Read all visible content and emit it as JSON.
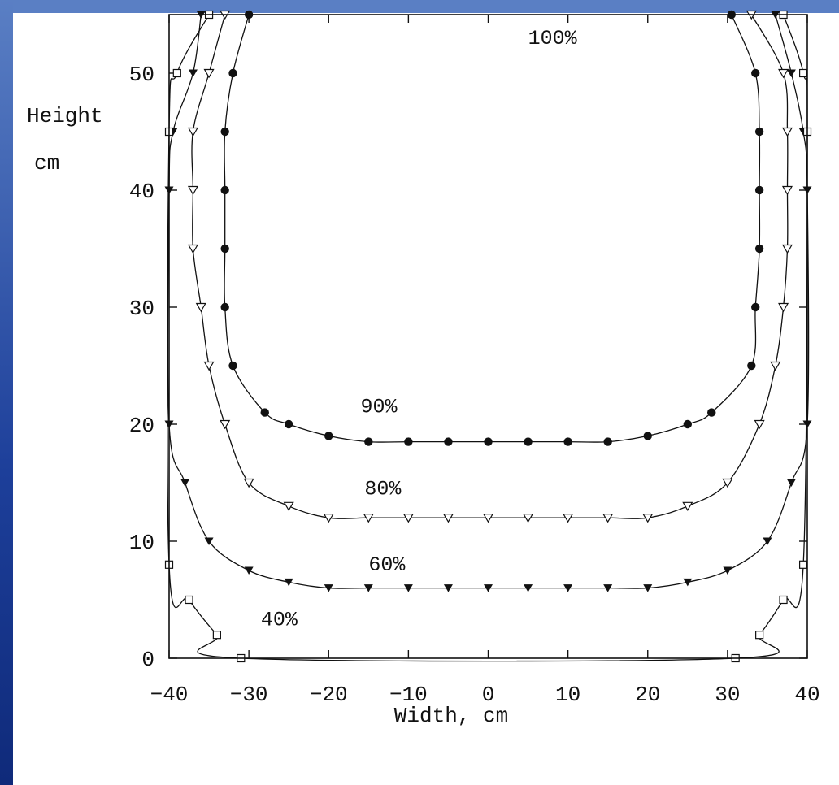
{
  "chart_data": {
    "type": "line",
    "title": "",
    "xlabel": "Width, cm",
    "ylabel_line1": "Height",
    "ylabel_line2": "cm",
    "xlim": [
      -40,
      40
    ],
    "ylim": [
      0,
      55
    ],
    "x_ticks": [
      -40,
      -30,
      -20,
      -10,
      0,
      10,
      20,
      30,
      40
    ],
    "x_tick_labels": [
      "−40",
      "−30",
      "−20",
      "−10",
      "0",
      "10",
      "20",
      "30",
      "40"
    ],
    "y_ticks": [
      0,
      10,
      20,
      30,
      40,
      50
    ],
    "y_tick_labels": [
      "0",
      "10",
      "20",
      "30",
      "40",
      "50"
    ],
    "grid": false,
    "series": [
      {
        "name": "100%",
        "marker": "none",
        "points": []
      },
      {
        "name": "90%",
        "marker": "filled-circle",
        "points": [
          [
            -30,
            55
          ],
          [
            -32,
            50
          ],
          [
            -33,
            45
          ],
          [
            -33,
            40
          ],
          [
            -33,
            35
          ],
          [
            -33,
            30
          ],
          [
            -32,
            25
          ],
          [
            -28,
            21
          ],
          [
            -25,
            20
          ],
          [
            -20,
            19
          ],
          [
            -15,
            18.5
          ],
          [
            -10,
            18.5
          ],
          [
            -5,
            18.5
          ],
          [
            0,
            18.5
          ],
          [
            5,
            18.5
          ],
          [
            10,
            18.5
          ],
          [
            15,
            18.5
          ],
          [
            20,
            19
          ],
          [
            25,
            20
          ],
          [
            28,
            21
          ],
          [
            33,
            25
          ],
          [
            33.5,
            30
          ],
          [
            34,
            35
          ],
          [
            34,
            40
          ],
          [
            34,
            45
          ],
          [
            33.5,
            50
          ],
          [
            30.5,
            55
          ]
        ]
      },
      {
        "name": "80%",
        "marker": "open-triangle",
        "points": [
          [
            -33,
            55
          ],
          [
            -35,
            50
          ],
          [
            -37,
            45
          ],
          [
            -37,
            40
          ],
          [
            -37,
            35
          ],
          [
            -36,
            30
          ],
          [
            -35,
            25
          ],
          [
            -33,
            20
          ],
          [
            -30,
            15
          ],
          [
            -25,
            13
          ],
          [
            -20,
            12
          ],
          [
            -15,
            12
          ],
          [
            -10,
            12
          ],
          [
            -5,
            12
          ],
          [
            0,
            12
          ],
          [
            5,
            12
          ],
          [
            10,
            12
          ],
          [
            15,
            12
          ],
          [
            20,
            12
          ],
          [
            25,
            13
          ],
          [
            30,
            15
          ],
          [
            34,
            20
          ],
          [
            36,
            25
          ],
          [
            37,
            30
          ],
          [
            37.5,
            35
          ],
          [
            37.5,
            40
          ],
          [
            37.5,
            45
          ],
          [
            37,
            50
          ],
          [
            33,
            55
          ]
        ]
      },
      {
        "name": "60%",
        "marker": "filled-triangle",
        "points": [
          [
            -36,
            55
          ],
          [
            -37,
            50
          ],
          [
            -39.5,
            45
          ],
          [
            -40,
            40
          ],
          [
            -40,
            20
          ],
          [
            -38,
            15
          ],
          [
            -35,
            10
          ],
          [
            -30,
            7.5
          ],
          [
            -25,
            6.5
          ],
          [
            -20,
            6
          ],
          [
            -15,
            6
          ],
          [
            -10,
            6
          ],
          [
            -5,
            6
          ],
          [
            0,
            6
          ],
          [
            5,
            6
          ],
          [
            10,
            6
          ],
          [
            15,
            6
          ],
          [
            20,
            6
          ],
          [
            25,
            6.5
          ],
          [
            30,
            7.5
          ],
          [
            35,
            10
          ],
          [
            38,
            15
          ],
          [
            40,
            20
          ],
          [
            40,
            40
          ],
          [
            39.5,
            45
          ],
          [
            38,
            50
          ],
          [
            36,
            55
          ]
        ]
      },
      {
        "name": "40%",
        "marker": "open-square",
        "points": [
          [
            -35,
            55
          ],
          [
            -39,
            50
          ],
          [
            -40,
            45
          ],
          [
            -40,
            8
          ],
          [
            -37.5,
            5
          ],
          [
            -34,
            2
          ],
          [
            -31,
            0
          ],
          [
            31,
            0
          ],
          [
            34,
            2
          ],
          [
            37,
            5
          ],
          [
            39.5,
            8
          ],
          [
            40,
            45
          ],
          [
            39.5,
            50
          ],
          [
            37,
            55
          ]
        ]
      }
    ],
    "labels": [
      {
        "text": "100%",
        "x": 5,
        "y": 52.5
      },
      {
        "text": "90%",
        "x": -16,
        "y": 21
      },
      {
        "text": "80%",
        "x": -15.5,
        "y": 14
      },
      {
        "text": "60%",
        "x": -15,
        "y": 7.5
      },
      {
        "text": "40%",
        "x": -28.5,
        "y": 2.8
      }
    ]
  }
}
